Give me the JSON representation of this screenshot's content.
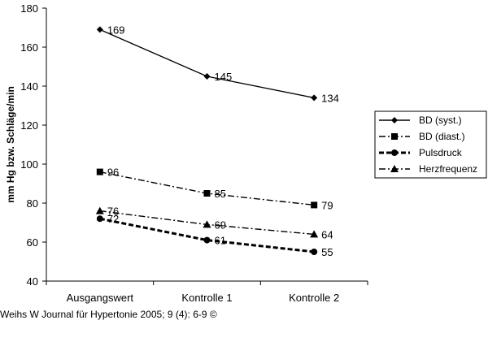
{
  "chart_data": {
    "type": "line",
    "categories": [
      "Ausgangswert",
      "Kontrolle 1",
      "Kontrolle 2"
    ],
    "ylabel": "mm Hg bzw. Schläge/min",
    "ylim": [
      40,
      180
    ],
    "yticks": [
      40,
      60,
      80,
      100,
      120,
      140,
      160,
      180
    ],
    "grid": false,
    "legend_position": "right",
    "series": [
      {
        "name": "BD (syst.)",
        "values": [
          169,
          145,
          134
        ],
        "marker": "diamond",
        "line": "solid"
      },
      {
        "name": "BD (diast.)",
        "values": [
          96,
          85,
          79
        ],
        "marker": "square",
        "line": "dashdot"
      },
      {
        "name": "Pulsdruck",
        "values": [
          72,
          61,
          55
        ],
        "marker": "circle",
        "line": "dashed"
      },
      {
        "name": "Herzfrequenz",
        "values": [
          76,
          69,
          64
        ],
        "marker": "triangle",
        "line": "dashdot"
      }
    ],
    "data_labels": [
      [
        "169",
        "145",
        "134"
      ],
      [
        "96",
        "85",
        "79"
      ],
      [
        "72",
        "61",
        "55"
      ],
      [
        "76",
        "69",
        "64"
      ]
    ]
  },
  "credit": "Weihs W Journal für Hypertonie 2005; 9 (4): 6-9 ©"
}
